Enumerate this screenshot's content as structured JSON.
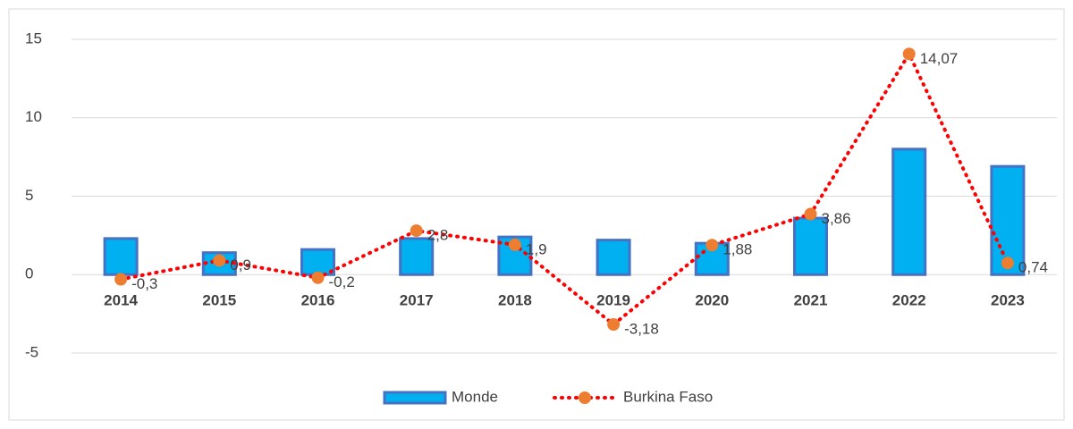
{
  "chart_data": {
    "type": "bar",
    "categories": [
      "2014",
      "2015",
      "2016",
      "2017",
      "2018",
      "2019",
      "2020",
      "2021",
      "2022",
      "2023"
    ],
    "series": [
      {
        "name": "Monde",
        "type": "bar",
        "color": "#00b0f0",
        "values": [
          2.3,
          1.4,
          1.6,
          2.3,
          2.4,
          2.2,
          2.0,
          3.6,
          8.0,
          6.9
        ]
      },
      {
        "name": "Burkina Faso",
        "type": "line",
        "color": "#ff0000",
        "marker_color": "#ed7d31",
        "values": [
          -0.3,
          0.9,
          -0.2,
          2.8,
          1.9,
          -3.18,
          1.88,
          3.86,
          14.07,
          0.74
        ],
        "value_labels": [
          "-0,3",
          "0,9",
          "-0,2",
          "2,8",
          "1,9",
          "-3,18",
          "1,88",
          "3,86",
          "14,07",
          "0,74"
        ]
      }
    ],
    "ylim": [
      -5,
      15
    ],
    "yticks": [
      -5,
      0,
      5,
      10,
      15
    ],
    "grid": true,
    "legend": "bottom"
  }
}
